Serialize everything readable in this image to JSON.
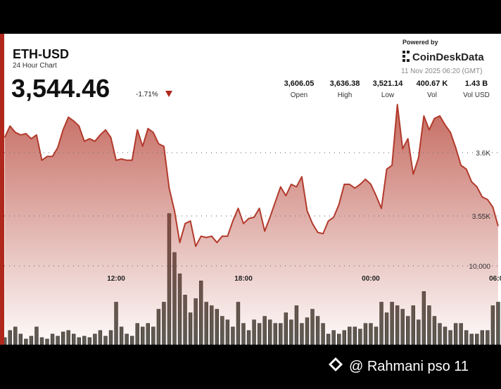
{
  "header": {
    "symbol": "ETH-USD",
    "subtitle": "24 Hour Chart",
    "price": "3,544.46",
    "change": "-1.71%",
    "powered_by": "Powered by",
    "brand": "CoinDeskData",
    "timestamp": "11 Nov 2025 06:20 (GMT)",
    "stats": [
      {
        "value": "3,606.05",
        "label": "Open"
      },
      {
        "value": "3,636.38",
        "label": "High"
      },
      {
        "value": "3,521.14",
        "label": "Low"
      },
      {
        "value": "400.67 K",
        "label": "Vol"
      },
      {
        "value": "1.43 B",
        "label": "Vol USD"
      }
    ]
  },
  "chart_data": {
    "type": "line",
    "categories": [
      null,
      null,
      null,
      null,
      null,
      null,
      null,
      null,
      null,
      null,
      null,
      null,
      null,
      null,
      null,
      null,
      null,
      null,
      null,
      null,
      null,
      "12:00",
      null,
      null,
      null,
      null,
      null,
      null,
      null,
      null,
      null,
      null,
      null,
      null,
      null,
      null,
      null,
      null,
      null,
      null,
      null,
      null,
      null,
      null,
      null,
      "18:00",
      null,
      null,
      null,
      null,
      null,
      null,
      null,
      null,
      null,
      null,
      null,
      null,
      null,
      null,
      null,
      null,
      null,
      null,
      null,
      null,
      null,
      null,
      null,
      "00:00",
      null,
      null,
      null,
      null,
      null,
      null,
      null,
      null,
      null,
      null,
      null,
      null,
      null,
      null,
      null,
      null,
      null,
      null,
      null,
      null,
      null,
      null,
      null,
      "06:00"
    ],
    "series": [
      {
        "color": "#b23a2c",
        "values": [
          3612,
          3621,
          3616,
          3614,
          3615,
          3611,
          3614,
          3594,
          3597,
          3597,
          3604,
          3618,
          3628,
          3625,
          3621,
          3609,
          3611,
          3609,
          3614,
          3618,
          3612,
          3594,
          3595,
          3594,
          3594,
          3618,
          3605,
          3619,
          3616,
          3607,
          3605,
          3572,
          3554,
          3529,
          3544,
          3546,
          3526,
          3534,
          3533,
          3534,
          3529,
          3534,
          3534,
          3546,
          3556,
          3544,
          3548,
          3549,
          3556,
          3538,
          3549,
          3561,
          3573,
          3566,
          3575,
          3573,
          3581,
          3554,
          3544,
          3537,
          3536,
          3546,
          3549,
          3559,
          3575,
          3575,
          3572,
          3575,
          3579,
          3575,
          3566,
          3556,
          3587,
          3590,
          3638,
          3603,
          3611,
          3583,
          3596,
          3629,
          3618,
          3627,
          3629,
          3622,
          3616,
          3604,
          3590,
          3587,
          3577,
          3573,
          3565,
          3563,
          3557,
          3542
        ]
      },
      {
        "type": "bar",
        "axis": "y2",
        "color": "#5b5b53",
        "values": [
          900,
          1800,
          2250,
          1350,
          720,
          1080,
          2250,
          900,
          720,
          1350,
          1080,
          1620,
          1800,
          1350,
          900,
          1080,
          900,
          1350,
          1800,
          1080,
          1800,
          5400,
          2250,
          1350,
          1080,
          2700,
          2250,
          2700,
          2250,
          4500,
          5400,
          16650,
          11700,
          9000,
          6300,
          4050,
          5850,
          8100,
          5400,
          4950,
          4500,
          3600,
          3150,
          2250,
          5400,
          2700,
          1800,
          3150,
          2700,
          3600,
          3150,
          2700,
          2700,
          4050,
          3150,
          4950,
          2700,
          3420,
          4500,
          3600,
          2700,
          1350,
          1800,
          1350,
          1800,
          2250,
          2250,
          1980,
          2700,
          2700,
          2250,
          5400,
          4050,
          5400,
          4950,
          4500,
          3600,
          4950,
          3150,
          6750,
          4950,
          3600,
          2700,
          2250,
          1800,
          2700,
          2700,
          1800,
          1350,
          1350,
          1800,
          1800,
          4950,
          5400
        ]
      }
    ],
    "ylim": [
      3500,
      3640
    ],
    "yticks": [
      {
        "value": 3600,
        "label": "3.6K"
      },
      {
        "value": 3550,
        "label": "3.55K"
      }
    ],
    "y2lim": [
      0,
      20000
    ],
    "y2ticks": [
      {
        "value": 10000,
        "label": "10,000"
      }
    ],
    "grid": true
  },
  "watermark": "@ Rahmani pso 11"
}
